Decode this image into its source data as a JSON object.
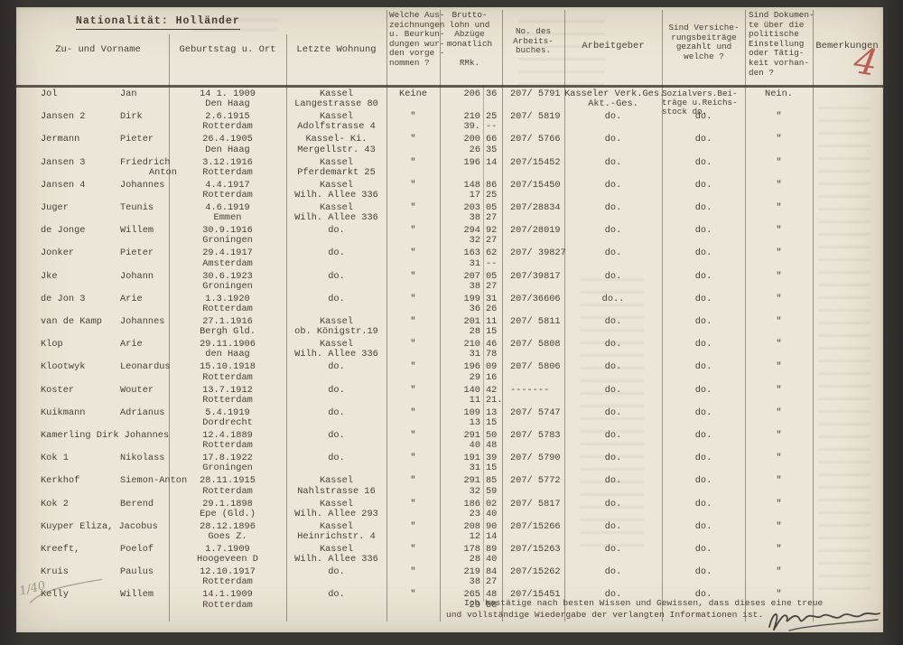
{
  "document": {
    "title": "Nationalität: Holländer",
    "page_number": "4",
    "columns": {
      "name": [
        "Zu- und Vorname"
      ],
      "birth": [
        "Geburtstag u. Ort"
      ],
      "residence": [
        "Letzte Wohnung"
      ],
      "award": [
        "Welche Aus-",
        "zeichnungen",
        "u. Beurkun-",
        "dungen wur-",
        "den vorge -",
        "nommen ?"
      ],
      "wage": [
        "Brutto-",
        "lohn und",
        "Abzüge",
        "monatlich",
        "",
        "RMk."
      ],
      "workbook": [
        "No. des",
        "Arbeits-",
        "buches."
      ],
      "employer": [
        "Arbeitgeber"
      ],
      "insurance": [
        "Sind Versiche-",
        "rungsbeiträge",
        "gezahlt und",
        "welche ?"
      ],
      "documents": [
        "Sind Dokumen-",
        "te über die",
        "politische",
        "Einstellung",
        "oder Tätig-",
        "keit vorhan-",
        "den ?"
      ],
      "remarks": [
        "Bemerkungen"
      ]
    },
    "certification": {
      "line1": "Ich bestätige nach besten Wissen und Gewissen, dass dieses eine treue",
      "line2": "und vollständige Wiedergabe der verlangten Informationen ist."
    },
    "annotations": {
      "pencil_mark": "1/40"
    },
    "colors": {
      "paper": "#ebe6d7",
      "ink": "#473f35",
      "red_annotation": "#b8473d"
    }
  },
  "table": {
    "rows": [
      {
        "last": "Jol",
        "first": "Jan",
        "date": "14 1. 1909",
        "place": "Den Haag",
        "res": [
          "Kassel",
          "Langestrasse 80"
        ],
        "award": "Keine",
        "wage": [
          "206",
          "36",
          "",
          ""
        ],
        "book": "207/ 5791",
        "emp": [
          "Kasseler Verk.Ges.",
          "Akt.-Ges."
        ],
        "ins": [
          "Sozialvers.Bei-",
          "träge u.Reichs-",
          "stock  do."
        ],
        "doc": "Nein.",
        "rem": ""
      },
      {
        "last": "Jansen 2",
        "first": "Dirk",
        "date": "2.6.1915",
        "place": "Rotterdam",
        "res": [
          "Kassel",
          "Adolfstrasse 4"
        ],
        "award": "\"",
        "wage": [
          "210",
          "25",
          "39.",
          "--"
        ],
        "book": "207/ 5819",
        "emp": [
          "do."
        ],
        "ins": [
          "do."
        ],
        "doc": "\"",
        "rem": ""
      },
      {
        "last": "Jermann",
        "first": "Pieter",
        "date": "26.4.1905",
        "place": "Den Haag",
        "res": [
          "Kassel- Ki.",
          "Mergellstr. 43"
        ],
        "award": "\"",
        "wage": [
          "200",
          "66",
          "26",
          "35"
        ],
        "book": "207/ 5766",
        "emp": [
          "do."
        ],
        "ins": [
          "do."
        ],
        "doc": "\"",
        "rem": ""
      },
      {
        "last": "Jansen 3",
        "first": "Friedrich",
        "name2": "Anton",
        "date": "3.12.1916",
        "place": "Rotterdam",
        "res": [
          "Kassel",
          "Pferdemarkt 25"
        ],
        "award": "\"",
        "wage": [
          "196",
          "14",
          "",
          ""
        ],
        "book": "207/15452",
        "emp": [
          "do."
        ],
        "ins": [
          "do."
        ],
        "doc": "\"",
        "rem": ""
      },
      {
        "last": "Jansen 4",
        "first": "Johannes",
        "date": "4.4.1917",
        "place": "Rotterdam",
        "res": [
          "Kassel",
          "Wilh. Allee 336"
        ],
        "award": "\"",
        "wage": [
          "148",
          "86",
          "17",
          "25"
        ],
        "book": "207/15450",
        "emp": [
          "do."
        ],
        "ins": [
          "do."
        ],
        "doc": "\"",
        "rem": ""
      },
      {
        "last": "Juger",
        "first": "Teunis",
        "date": "4.6.1919",
        "place": "Emmen",
        "res": [
          "Kassel",
          "Wilh. Allee 336"
        ],
        "award": "\"",
        "wage": [
          "203",
          "05",
          "38",
          "27"
        ],
        "book": "207/28834",
        "emp": [
          "do."
        ],
        "ins": [
          "do."
        ],
        "doc": "\"",
        "rem": ""
      },
      {
        "last": "de Jonge",
        "first": "Willem",
        "date": "30.9.1916",
        "place": "Groningen",
        "res": [
          "do."
        ],
        "award": "\"",
        "wage": [
          "294",
          "92",
          "32",
          "27"
        ],
        "book": "207/28019",
        "emp": [
          "do."
        ],
        "ins": [
          "do."
        ],
        "doc": "\"",
        "rem": ""
      },
      {
        "last": "Jonker",
        "first": "Pieter",
        "date": "29.4.1917",
        "place": "Amsterdam",
        "res": [
          "do."
        ],
        "award": "\"",
        "wage": [
          "163",
          "62",
          "31",
          "--"
        ],
        "book": "207/ 39827",
        "emp": [
          "do."
        ],
        "ins": [
          "do."
        ],
        "doc": "\"",
        "rem": ""
      },
      {
        "last": "Jke",
        "first": "Johann",
        "date": "30.6.1923",
        "place": "Groningen",
        "res": [
          "do."
        ],
        "award": "\"",
        "wage": [
          "207",
          "05",
          "38",
          "27"
        ],
        "book": "207/39817",
        "emp": [
          "do."
        ],
        "ins": [
          "do."
        ],
        "doc": "\"",
        "rem": ""
      },
      {
        "last": "de Jon 3",
        "first": "Arie",
        "date": "1.3.1920",
        "place": "Rotterdam",
        "res": [
          "do."
        ],
        "award": "\"",
        "wage": [
          "199",
          "31",
          "36",
          "26"
        ],
        "book": "207/36606",
        "emp": [
          "do.."
        ],
        "ins": [
          "do."
        ],
        "doc": "\"",
        "rem": ""
      },
      {
        "last": "van de Kamp",
        "first": "Johannes",
        "date": "27.1.1916",
        "place": "Bergh Gld.",
        "res": [
          "Kassel",
          "ob. Königstr.19"
        ],
        "award": "\"",
        "wage": [
          "201",
          "11",
          "28",
          "15"
        ],
        "book": "207/ 5811",
        "emp": [
          "do."
        ],
        "ins": [
          "do."
        ],
        "doc": "\"",
        "rem": ""
      },
      {
        "last": "Klop",
        "first": "Arie",
        "date": "29.11.1906",
        "place": "den Haag",
        "res": [
          "Kassel",
          "Wilh. Allee 336"
        ],
        "award": "\"",
        "wage": [
          "210",
          "46",
          "31",
          "78"
        ],
        "book": "207/ 5808",
        "emp": [
          "do."
        ],
        "ins": [
          "do."
        ],
        "doc": "\"",
        "rem": ""
      },
      {
        "last": "Klootwyk",
        "first": "Leonardus",
        "date": "15.10.1918",
        "place": "Rotterdam",
        "res": [
          "do."
        ],
        "award": "\"",
        "wage": [
          "196",
          "09",
          "29",
          "16"
        ],
        "book": "207/ 5806",
        "emp": [
          "do."
        ],
        "ins": [
          "do."
        ],
        "doc": "\"",
        "rem": ""
      },
      {
        "last": "Koster",
        "first": "Wouter",
        "date": "13.7.1912",
        "place": "Rotterdam",
        "res": [
          "do."
        ],
        "award": "\"",
        "wage": [
          "140",
          "42",
          "11",
          "21."
        ],
        "book": "-------",
        "emp": [
          "do."
        ],
        "ins": [
          "do."
        ],
        "doc": "\"",
        "rem": ""
      },
      {
        "last": "Kuikmann",
        "first": "Adrianus",
        "date": "5.4.1919",
        "place": "Dordrecht",
        "res": [
          "do."
        ],
        "award": "\"",
        "wage": [
          "109",
          "13",
          "13",
          "15"
        ],
        "book": "207/ 5747",
        "emp": [
          "do."
        ],
        "ins": [
          "do."
        ],
        "doc": "\"",
        "rem": ""
      },
      {
        "last": "Kamerling Dirk Johannes",
        "first": "",
        "date": "12.4.1889",
        "place": "Rotterdam",
        "res": [
          "do."
        ],
        "award": "\"",
        "wage": [
          "291",
          "50",
          "40",
          "48"
        ],
        "book": "207/ 5783",
        "emp": [
          "do."
        ],
        "ins": [
          "do."
        ],
        "doc": "\"",
        "rem": ""
      },
      {
        "last": "Kok 1",
        "first": "Nikolass",
        "date": "17.8.1922",
        "place": "Groningen",
        "res": [
          "do."
        ],
        "award": "\"",
        "wage": [
          "191",
          "39",
          "31",
          "15"
        ],
        "book": "207/ 5790",
        "emp": [
          "do."
        ],
        "ins": [
          "do."
        ],
        "doc": "\"",
        "rem": ""
      },
      {
        "last": "Kerkhof",
        "first": "Siemon-Anton",
        "date": "28.11.1915",
        "place": "Rotterdam",
        "res": [
          "Kassel",
          "Nahlstrasse 16"
        ],
        "award": "\"",
        "wage": [
          "291",
          "85",
          "32",
          "59"
        ],
        "book": "207/ 5772",
        "emp": [
          "do."
        ],
        "ins": [
          "do."
        ],
        "doc": "\"",
        "rem": ""
      },
      {
        "last": "Kok 2",
        "first": "Berend",
        "date": "29.1.1898",
        "place": "Epe (Gld.)",
        "res": [
          "Kassel",
          "Wilh. Allee 293"
        ],
        "award": "\"",
        "wage": [
          "186",
          "02",
          "23",
          "40"
        ],
        "book": "207/ 5817",
        "emp": [
          "do."
        ],
        "ins": [
          "do."
        ],
        "doc": "\"",
        "rem": ""
      },
      {
        "last": "Kuyper Eliza, Jacobus",
        "first": "",
        "date": "28.12.1896",
        "place": "Goes Z.",
        "res": [
          "Kassel",
          "Heinrichstr. 4"
        ],
        "award": "\"",
        "wage": [
          "208",
          "90",
          "12",
          "14"
        ],
        "book": "207/15266",
        "emp": [
          "do."
        ],
        "ins": [
          "do."
        ],
        "doc": "\"",
        "rem": ""
      },
      {
        "last": "Kreeft,",
        "first": "Poelof",
        "date": "1.7.1909",
        "place": "Hoogeveen D",
        "res": [
          "Kassel",
          "Wilh. Allee 336"
        ],
        "award": "\"",
        "wage": [
          "178",
          "89",
          "28",
          "40"
        ],
        "book": "207/15263",
        "emp": [
          "do."
        ],
        "ins": [
          "do."
        ],
        "doc": "\"",
        "rem": ""
      },
      {
        "last": "Kruis",
        "first": "Paulus",
        "date": "12.10.1917",
        "place": "Rotterdam",
        "res": [
          "do."
        ],
        "award": "\"",
        "wage": [
          "219",
          "84",
          "38",
          "27"
        ],
        "book": "207/15262",
        "emp": [
          "do."
        ],
        "ins": [
          "do."
        ],
        "doc": "\"",
        "rem": ""
      },
      {
        "last": "Kelly",
        "first": "Willem",
        "date": "14.1.1909",
        "place": "Rotterdam",
        "res": [
          "do."
        ],
        "award": "\"",
        "wage": [
          "265",
          "48",
          "29",
          "58"
        ],
        "book": "207/15451",
        "emp": [
          "do."
        ],
        "ins": [
          "do."
        ],
        "doc": "\"",
        "rem": ""
      }
    ]
  }
}
